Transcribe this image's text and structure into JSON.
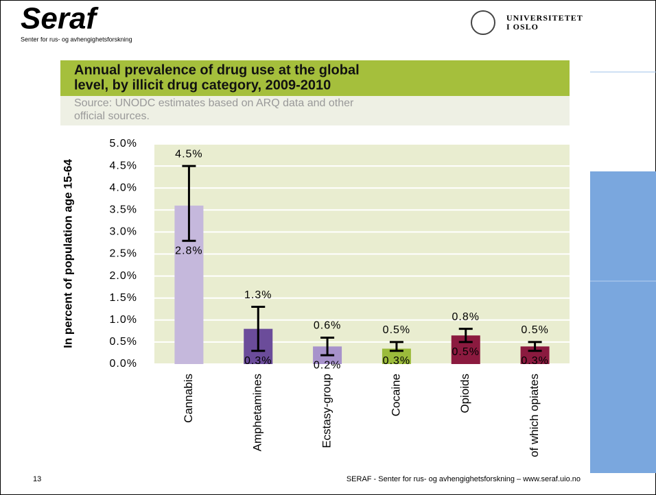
{
  "header": {
    "logo": "Seraf",
    "subtitle": "Senter for rus- og avhengighetsforskning",
    "university": [
      "UNIVERSITETET",
      "I OSLO"
    ]
  },
  "footer": {
    "page": "13",
    "text": "SERAF - Senter for rus- og avhengighetsforskning – www.seraf.uio.no"
  },
  "chart_data": {
    "type": "bar",
    "title": [
      "Annual prevalence of drug use at the global",
      "level, by illicit drug category, 2009-2010"
    ],
    "subtitle": [
      "Source: UNODC estimates based on ARQ data and other",
      "official sources."
    ],
    "y_label": "In percent of population age 15-64",
    "categories": [
      "Cannabis",
      "Amphetamines",
      "Ecstasy-group",
      "Cocaine",
      "Opioids",
      "of which opiates"
    ],
    "values": [
      3.6,
      0.8,
      0.4,
      0.35,
      0.65,
      0.4
    ],
    "colors": [
      "#c5b8dc",
      "#6b4c9a",
      "#a792cb",
      "#9bbb3b",
      "#8b1a3f",
      "#8b1a3f"
    ],
    "high": [
      4.5,
      1.3,
      0.6,
      0.5,
      0.8,
      0.5
    ],
    "high_labels": [
      "4.5%",
      "1.3%",
      "0.6%",
      "0.5%",
      "0.8%",
      "0.5%"
    ],
    "low": [
      2.8,
      0.3,
      0.2,
      0.3,
      0.5,
      0.3
    ],
    "low_labels": [
      "2.8%",
      "0.3%",
      "0.2%",
      "0.3%",
      "0.5%",
      "0.3%"
    ],
    "ylim": [
      0,
      5
    ],
    "yticks": [
      {
        "value": 0,
        "label": "0.0%"
      },
      {
        "value": 0.5,
        "label": "0.5%"
      },
      {
        "value": 1,
        "label": "1.0%"
      },
      {
        "value": 1.5,
        "label": "1.5%"
      },
      {
        "value": 2,
        "label": "2.0%"
      },
      {
        "value": 2.5,
        "label": "2.5%"
      },
      {
        "value": 3,
        "label": "3.0%"
      },
      {
        "value": 3.5,
        "label": "3.5%"
      },
      {
        "value": 4,
        "label": "4.0%"
      },
      {
        "value": 4.5,
        "label": "4.5%"
      },
      {
        "value": 5,
        "label": "5.0%"
      }
    ],
    "grid": true
  }
}
